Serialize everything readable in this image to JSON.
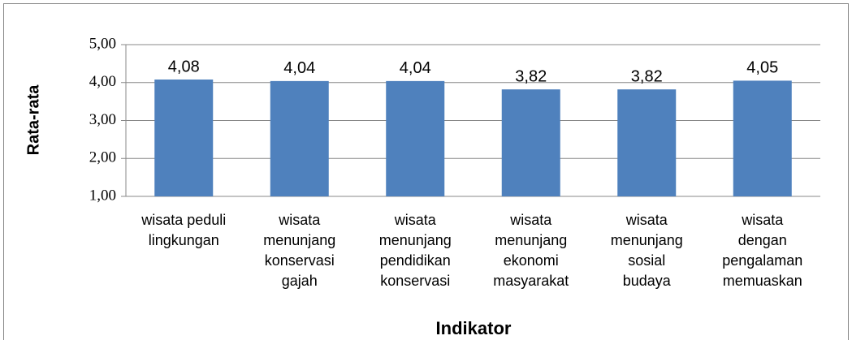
{
  "chart_data": {
    "type": "bar",
    "categories": [
      "wisata peduli\nlingkungan",
      "wisata\nmenunjang\nkonservasi\ngajah",
      "wisata\nmenunjang\npendidikan\nkonservasi",
      "wisata\nmenunjang\nekonomi\nmasyarakat",
      "wisata\nmenunjang\nsosial\nbudaya",
      "wisata\ndengan\npengalaman\nmemuaskan"
    ],
    "values": [
      4.08,
      4.04,
      4.04,
      3.82,
      3.82,
      4.05
    ],
    "value_labels": [
      "4,08",
      "4,04",
      "4,04",
      "3,82",
      "3,82",
      "4,05"
    ],
    "color": "#4f81bd",
    "x_label": "Indikator",
    "y_label": "Rata-rata",
    "ylim": [
      1,
      5
    ],
    "yticks": [
      {
        "value": 1,
        "label": "1,00"
      },
      {
        "value": 2,
        "label": "2,00"
      },
      {
        "value": 3,
        "label": "3,00"
      },
      {
        "value": 4,
        "label": "4,00"
      },
      {
        "value": 5,
        "label": "5,00"
      }
    ],
    "grid": true
  }
}
